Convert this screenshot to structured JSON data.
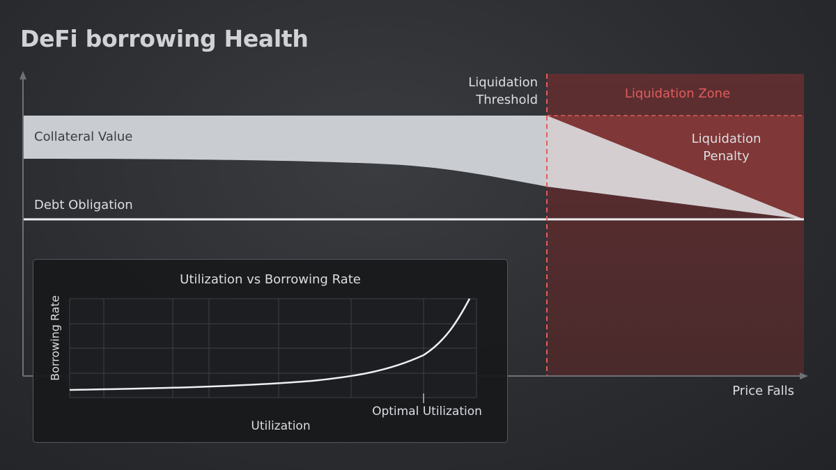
{
  "title": "DeFi borrowing Health",
  "main": {
    "collateral_label": "Collateral Value",
    "debt_label": "Debt Obligation",
    "threshold_label": [
      "Liquidation",
      "Threshold"
    ],
    "zone_label": "Liquidation Zone",
    "penalty_label": [
      "Liquidation",
      "Penalty"
    ],
    "x_axis_label": "Price Falls"
  },
  "inset": {
    "title": "Utilization vs Borrowing Rate",
    "y_label": "Borrowing Rate",
    "x_label": "Utilization",
    "optimal_label": "Optimal Utilization"
  },
  "colors": {
    "background": "#2b2d31",
    "collateral_band": "#c9cdd1",
    "liquidation_zone": "#7a3434",
    "threshold_line": "#e05c5c",
    "text": "#dcdee2"
  }
}
